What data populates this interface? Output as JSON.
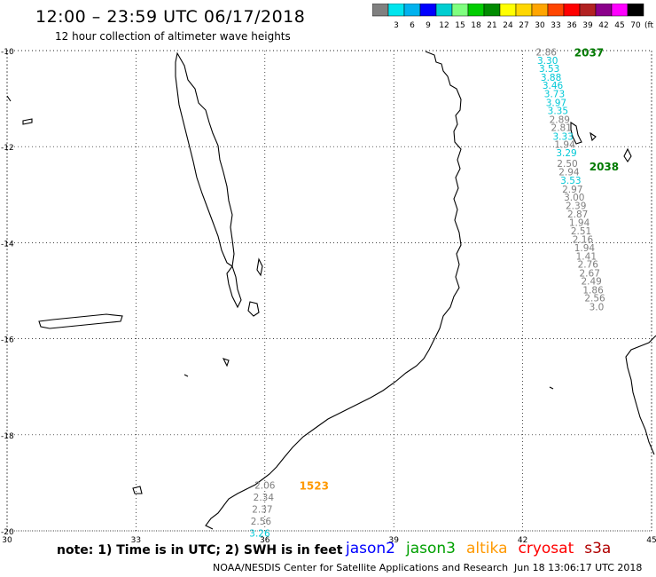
{
  "header": {
    "title": "12:00 – 23:59 UTC 06/17/2018",
    "subtitle": "12 hour collection of altimeter wave heights"
  },
  "legend": {
    "unit": "(ft)",
    "bins": [
      {
        "label": "",
        "color": "#808080"
      },
      {
        "label": "3",
        "color": "#00e5ee"
      },
      {
        "label": "6",
        "color": "#00b2ee"
      },
      {
        "label": "9",
        "color": "#0000ff"
      },
      {
        "label": "12",
        "color": "#00ced1"
      },
      {
        "label": "15",
        "color": "#7fff7f"
      },
      {
        "label": "18",
        "color": "#00cd00"
      },
      {
        "label": "21",
        "color": "#008b00"
      },
      {
        "label": "24",
        "color": "#ffff00"
      },
      {
        "label": "27",
        "color": "#ffd700"
      },
      {
        "label": "30",
        "color": "#ffa500"
      },
      {
        "label": "33",
        "color": "#ff4500"
      },
      {
        "label": "36",
        "color": "#ff0000"
      },
      {
        "label": "39",
        "color": "#b22222"
      },
      {
        "label": "42",
        "color": "#8b008b"
      },
      {
        "label": "45",
        "color": "#ff00ff"
      },
      {
        "label": "70",
        "color": "#000000"
      }
    ]
  },
  "axes": {
    "lat_ticks": [
      {
        "lat": -10,
        "label": "-10"
      },
      {
        "lat": -12,
        "label": "-12"
      },
      {
        "lat": -14,
        "label": "-14"
      },
      {
        "lat": -16,
        "label": "-16"
      },
      {
        "lat": -18,
        "label": "-18"
      },
      {
        "lat": -20,
        "label": "-20"
      }
    ],
    "lon_ticks": [
      {
        "lon": 30,
        "label": "30"
      },
      {
        "lon": 33,
        "label": "33"
      },
      {
        "lon": 36,
        "label": "36"
      },
      {
        "lon": 39,
        "label": "39"
      },
      {
        "lon": 42,
        "label": "42"
      },
      {
        "lon": 45,
        "label": "45"
      }
    ],
    "lon_range": [
      30,
      45
    ],
    "lat_range": [
      -20,
      -10
    ],
    "grid": "dotted"
  },
  "tracks": [
    {
      "satellite": "jason3",
      "time_label": "2037",
      "label_color": "#007a00",
      "label_lon": 43.2,
      "label_lat": -10.03,
      "points": [
        {
          "lon": 42.55,
          "lat": -10.03,
          "value": "2.86",
          "color": "#7f7f7f"
        },
        {
          "lon": 42.58,
          "lat": -10.2,
          "value": "3.30",
          "color": "#00c8d6"
        },
        {
          "lon": 42.62,
          "lat": -10.37,
          "value": "3.53",
          "color": "#00c8d6"
        },
        {
          "lon": 42.66,
          "lat": -10.55,
          "value": "3.88",
          "color": "#00c8d6"
        },
        {
          "lon": 42.7,
          "lat": -10.72,
          "value": "3.46",
          "color": "#00c8d6"
        },
        {
          "lon": 42.74,
          "lat": -10.9,
          "value": "3.73",
          "color": "#00c8d6"
        },
        {
          "lon": 42.78,
          "lat": -11.08,
          "value": "3.97",
          "color": "#00c8d6"
        },
        {
          "lon": 42.82,
          "lat": -11.25,
          "value": "3.35",
          "color": "#00c8d6"
        },
        {
          "lon": 42.86,
          "lat": -11.43,
          "value": "2.89",
          "color": "#7f7f7f"
        },
        {
          "lon": 42.9,
          "lat": -11.6,
          "value": "2.81",
          "color": "#7f7f7f"
        },
        {
          "lon": 42.94,
          "lat": -11.78,
          "value": "3.33",
          "color": "#00c8d6"
        },
        {
          "lon": 42.98,
          "lat": -11.95,
          "value": "1.94",
          "color": "#7f7f7f"
        },
        {
          "lon": 43.02,
          "lat": -12.13,
          "value": "3.29",
          "color": "#00c8d6"
        }
      ]
    },
    {
      "satellite": "jason3",
      "time_label": "2038",
      "label_color": "#007a00",
      "label_lon": 43.55,
      "label_lat": -12.4,
      "points": [
        {
          "lon": 43.04,
          "lat": -12.35,
          "value": "2.50",
          "color": "#7f7f7f"
        },
        {
          "lon": 43.08,
          "lat": -12.52,
          "value": "2.94",
          "color": "#7f7f7f"
        },
        {
          "lon": 43.12,
          "lat": -12.7,
          "value": "3.53",
          "color": "#00c8d6"
        },
        {
          "lon": 43.16,
          "lat": -12.88,
          "value": "2.97",
          "color": "#7f7f7f"
        },
        {
          "lon": 43.2,
          "lat": -13.05,
          "value": "3.00",
          "color": "#7f7f7f"
        },
        {
          "lon": 43.24,
          "lat": -13.23,
          "value": "2.39",
          "color": "#7f7f7f"
        },
        {
          "lon": 43.28,
          "lat": -13.4,
          "value": "2.87",
          "color": "#7f7f7f"
        },
        {
          "lon": 43.32,
          "lat": -13.58,
          "value": "1.94",
          "color": "#7f7f7f"
        },
        {
          "lon": 43.36,
          "lat": -13.75,
          "value": "2.51",
          "color": "#7f7f7f"
        },
        {
          "lon": 43.4,
          "lat": -13.93,
          "value": "2.16",
          "color": "#7f7f7f"
        },
        {
          "lon": 43.44,
          "lat": -14.1,
          "value": "1.94",
          "color": "#7f7f7f"
        },
        {
          "lon": 43.48,
          "lat": -14.28,
          "value": "1.41",
          "color": "#7f7f7f"
        },
        {
          "lon": 43.52,
          "lat": -14.45,
          "value": "2.76",
          "color": "#7f7f7f"
        },
        {
          "lon": 43.56,
          "lat": -14.63,
          "value": "2.67",
          "color": "#7f7f7f"
        },
        {
          "lon": 43.6,
          "lat": -14.8,
          "value": "2.49",
          "color": "#7f7f7f"
        },
        {
          "lon": 43.64,
          "lat": -14.98,
          "value": "1.86",
          "color": "#7f7f7f"
        },
        {
          "lon": 43.68,
          "lat": -15.15,
          "value": "2.56",
          "color": "#7f7f7f"
        },
        {
          "lon": 43.72,
          "lat": -15.33,
          "value": "3.0",
          "color": "#7f7f7f"
        }
      ]
    },
    {
      "satellite": "altika",
      "time_label": "1523",
      "label_color": "#ff9900",
      "label_lon": 36.8,
      "label_lat": -19.05,
      "points": [
        {
          "lon": 36.0,
          "lat": -19.05,
          "value": "2.06",
          "color": "#7f7f7f"
        },
        {
          "lon": 35.97,
          "lat": -19.3,
          "value": "2.34",
          "color": "#7f7f7f"
        },
        {
          "lon": 35.94,
          "lat": -19.55,
          "value": "2.37",
          "color": "#7f7f7f"
        },
        {
          "lon": 35.91,
          "lat": -19.8,
          "value": "2.56",
          "color": "#7f7f7f"
        },
        {
          "lon": 35.88,
          "lat": -20.05,
          "value": "3.26",
          "color": "#00c8d6"
        }
      ]
    }
  ],
  "footer": {
    "note": "note:  1) Time is in UTC;  2) SWH is in feet",
    "satellites": [
      {
        "name": "jason2",
        "color": "#0000ff"
      },
      {
        "name": "jason3",
        "color": "#00a000"
      },
      {
        "name": "altika",
        "color": "#ff9900"
      },
      {
        "name": "cryosat",
        "color": "#ff0000"
      },
      {
        "name": "s3a",
        "color": "#b00000"
      }
    ],
    "credit": "NOAA/NESDIS Center for Satellite Applications and Research",
    "timestamp": "Jun 18 13:06:17 UTC 2018"
  }
}
